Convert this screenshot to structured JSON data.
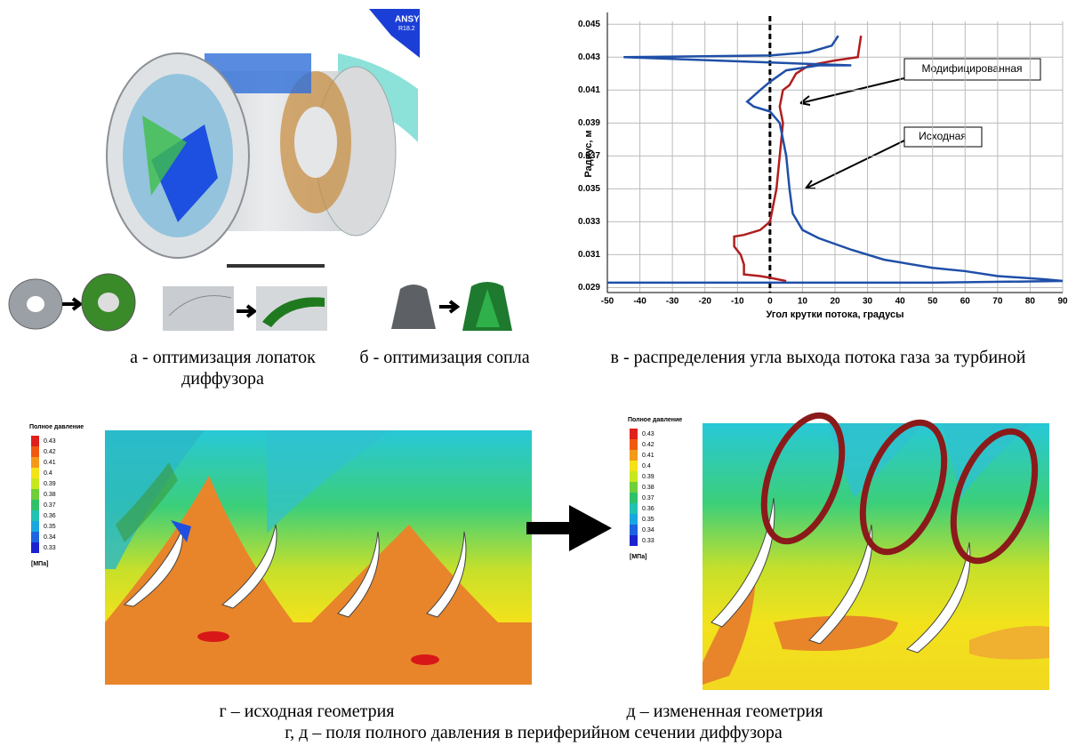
{
  "render": {
    "brand": "ANSYS",
    "version": "R18.2"
  },
  "captions": {
    "a": "а - оптимизация лопаток диффузора",
    "b": "б - оптимизация сопла",
    "c": "в - распределения угла выхода потока газа за турбиной",
    "d": "г – исходная геометрия",
    "e": "д – измененная геометрия",
    "de": "г, д – поля полного давления в периферийном сечении диффузора"
  },
  "pressure_legend": {
    "title": "Полное давление",
    "unit": "[МПа]",
    "ticks": [
      0.43,
      0.42,
      0.41,
      0.4,
      0.39,
      0.38,
      0.37,
      0.36,
      0.35,
      0.34,
      0.33
    ],
    "colors": [
      "#e0201c",
      "#f05a10",
      "#f39a1a",
      "#f5e31a",
      "#c8e81e",
      "#6ecf3a",
      "#2fc16a",
      "#20c2b4",
      "#1aa6e0",
      "#1c64e0",
      "#1b22d0"
    ]
  },
  "chart_data": {
    "type": "line",
    "x_label": "Угол крутки потока, градусы",
    "y_label": "Радиус, м",
    "xlim": [
      -50,
      90
    ],
    "xticks": [
      -50,
      -40,
      -30,
      -20,
      -10,
      0,
      10,
      20,
      30,
      40,
      50,
      60,
      70,
      80,
      90
    ],
    "ylim": [
      0.0287,
      0.0455
    ],
    "yticks": [
      0.029,
      0.031,
      0.033,
      0.035,
      0.037,
      0.039,
      0.041,
      0.043,
      0.045
    ],
    "grid": true,
    "reference_x": 0,
    "series": [
      {
        "name": "Модифицированная",
        "color": "#b01e1e",
        "x": [
          28,
          27,
          20,
          12,
          8,
          6,
          4,
          3,
          4,
          3,
          2,
          1,
          0,
          -3,
          -8,
          -11,
          -11,
          -9,
          -8,
          -8,
          -3,
          0,
          5
        ],
        "values": [
          0.0443,
          0.043,
          0.0428,
          0.0425,
          0.042,
          0.0413,
          0.041,
          0.04,
          0.039,
          0.037,
          0.035,
          0.034,
          0.033,
          0.0325,
          0.0322,
          0.0321,
          0.0315,
          0.031,
          0.0304,
          0.0298,
          0.0297,
          0.0296,
          0.0294
        ]
      },
      {
        "name": "Исходная",
        "color": "#1f4fa8",
        "x": [
          21,
          19,
          12,
          0,
          -45,
          25,
          15,
          5,
          0,
          -3,
          -7,
          -5,
          0,
          3,
          5,
          6,
          7,
          10,
          15,
          25,
          35,
          50,
          60,
          70,
          85,
          90,
          50,
          -50
        ],
        "values": [
          0.0443,
          0.0437,
          0.0433,
          0.0431,
          0.043,
          0.0425,
          0.0425,
          0.0422,
          0.0415,
          0.041,
          0.0403,
          0.04,
          0.0397,
          0.039,
          0.037,
          0.035,
          0.0335,
          0.0325,
          0.032,
          0.0313,
          0.0307,
          0.0302,
          0.03,
          0.0297,
          0.0295,
          0.0294,
          0.0293,
          0.0293
        ]
      }
    ]
  }
}
